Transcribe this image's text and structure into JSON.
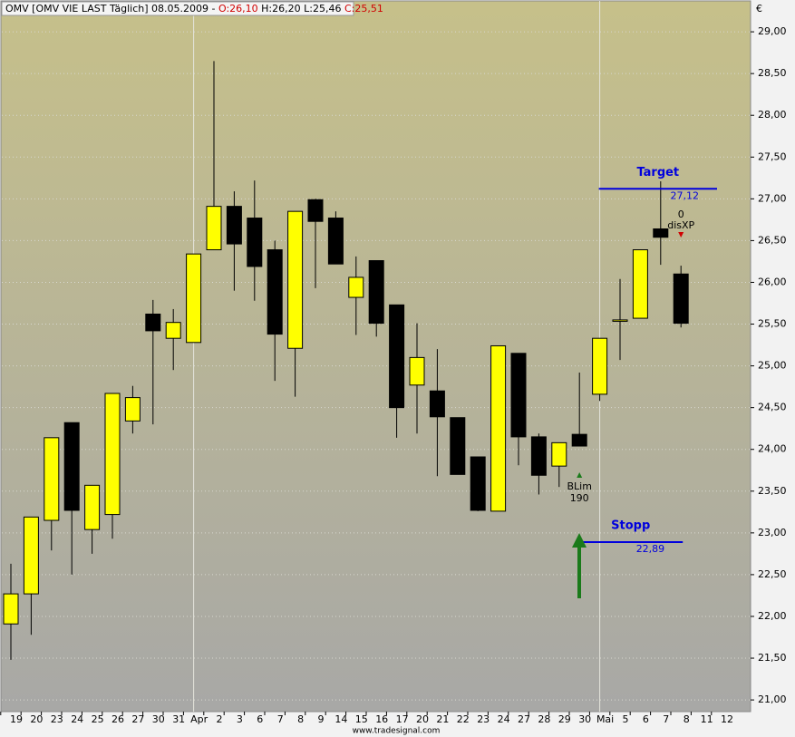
{
  "chart_data": {
    "type": "candlestick",
    "title": "OMV [OMV VIE LAST Täglich] 08.05.2009 -",
    "ohlc_labels": [
      "O:26,10",
      "H:26,20",
      "L:25,46",
      "C:25,51"
    ],
    "currency": "€",
    "credit": "www.tradesignal.com",
    "categories": [
      "19",
      "20",
      "23",
      "24",
      "25",
      "26",
      "27",
      "30",
      "31",
      "Apr",
      "2",
      "3",
      "6",
      "7",
      "8",
      "9",
      "14",
      "15",
      "16",
      "17",
      "20",
      "21",
      "22",
      "23",
      "24",
      "27",
      "28",
      "29",
      "30",
      "Mai",
      "5",
      "6",
      "7",
      "8",
      "11",
      "12"
    ],
    "series": {
      "open": [
        21.91,
        22.27,
        23.15,
        24.32,
        23.04,
        23.22,
        24.34,
        25.62,
        25.33,
        25.28,
        26.39,
        26.91,
        26.77,
        26.39,
        25.21,
        26.99,
        26.77,
        25.82,
        26.26,
        25.73,
        24.77,
        24.7,
        24.38,
        23.91,
        23.26,
        25.15,
        24.15,
        23.8,
        24.18,
        24.66,
        25.55,
        25.57,
        26.64,
        26.1,
        null,
        null
      ],
      "high": [
        22.63,
        23.19,
        24.14,
        24.32,
        23.57,
        24.67,
        24.76,
        25.79,
        25.68,
        26.34,
        28.65,
        27.09,
        27.22,
        26.5,
        26.85,
        27.0,
        26.85,
        26.31,
        26.26,
        25.73,
        25.51,
        25.2,
        24.38,
        23.91,
        25.24,
        25.15,
        24.19,
        24.08,
        24.92,
        25.33,
        26.04,
        26.39,
        27.21,
        26.2,
        null,
        null
      ],
      "low": [
        21.48,
        21.78,
        22.79,
        22.5,
        22.75,
        22.93,
        24.19,
        24.3,
        24.95,
        25.28,
        26.39,
        25.9,
        25.78,
        24.82,
        24.63,
        25.93,
        26.22,
        25.37,
        25.35,
        24.14,
        24.19,
        23.68,
        23.7,
        23.26,
        23.26,
        23.81,
        23.46,
        23.55,
        24.04,
        24.58,
        25.07,
        25.57,
        26.21,
        25.46,
        null,
        null
      ],
      "close": [
        22.27,
        23.19,
        24.14,
        23.27,
        23.57,
        24.67,
        24.62,
        25.42,
        25.52,
        26.34,
        26.91,
        26.46,
        26.19,
        25.38,
        26.85,
        26.73,
        26.22,
        26.06,
        25.51,
        24.5,
        25.1,
        24.39,
        23.7,
        23.27,
        25.24,
        24.15,
        23.69,
        24.08,
        24.04,
        25.33,
        25.55,
        26.39,
        26.54,
        25.51,
        null,
        null
      ]
    },
    "up_color": "#ffff00",
    "down_color": "#000000",
    "ylim": [
      20.86,
      29.37
    ],
    "yticks": [
      {
        "value": 21,
        "label": "21,00"
      },
      {
        "value": 21.5,
        "label": "21,50"
      },
      {
        "value": 22,
        "label": "22,00"
      },
      {
        "value": 22.5,
        "label": "22,50"
      },
      {
        "value": 23,
        "label": "23,00"
      },
      {
        "value": 23.5,
        "label": "23,50"
      },
      {
        "value": 24,
        "label": "24,00"
      },
      {
        "value": 24.5,
        "label": "24,50"
      },
      {
        "value": 25,
        "label": "25,00"
      },
      {
        "value": 25.5,
        "label": "25,50"
      },
      {
        "value": 26,
        "label": "26,00"
      },
      {
        "value": 26.5,
        "label": "26,50"
      },
      {
        "value": 27,
        "label": "27,00"
      },
      {
        "value": 27.5,
        "label": "27,50"
      },
      {
        "value": 28,
        "label": "28,00"
      },
      {
        "value": 28.5,
        "label": "28,50"
      },
      {
        "value": 29,
        "label": "29,00"
      }
    ],
    "grid": true,
    "levels": [
      {
        "name": "Target",
        "value": 27.12,
        "label": "27,12"
      },
      {
        "name": "Stopp",
        "value": 22.89,
        "label": "22,89"
      }
    ],
    "entry_signal": [
      "BLim",
      "190"
    ],
    "exit_signal": [
      "0",
      "disXP"
    ]
  }
}
